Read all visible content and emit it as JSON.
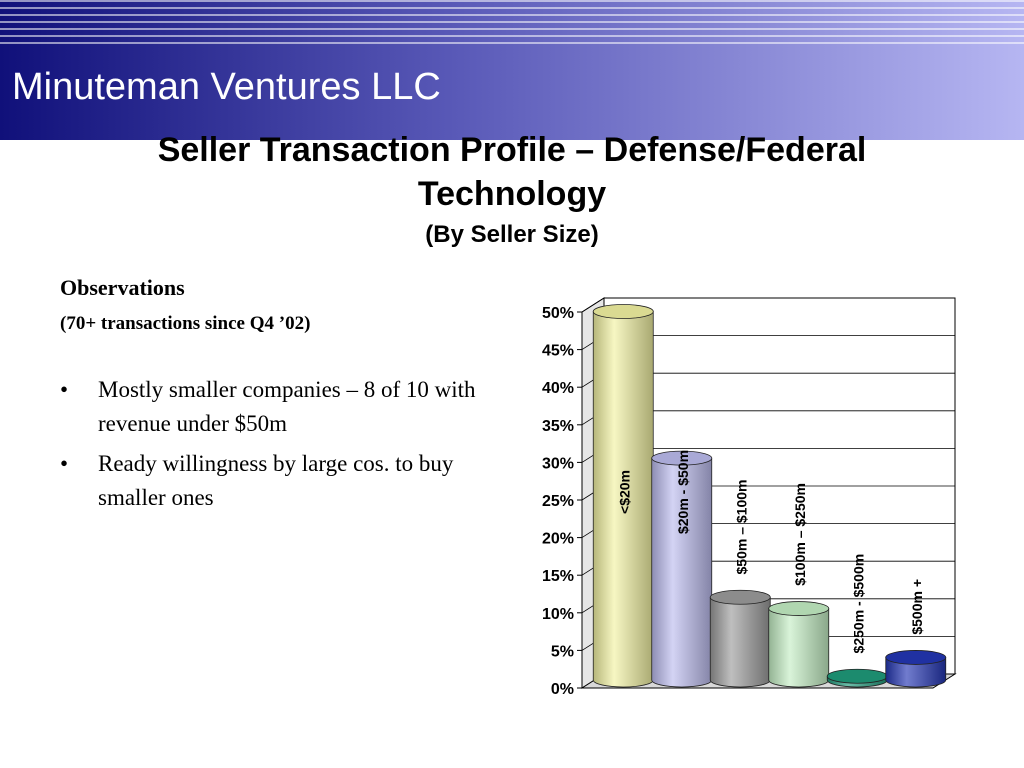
{
  "header": {
    "company": "Minuteman Ventures LLC"
  },
  "title": {
    "line1": "Seller Transaction Profile  – Defense/Federal",
    "line2": "Technology",
    "subtitle": "(By Seller Size)"
  },
  "observations": {
    "heading": "Observations",
    "subheading": "(70+ transactions since Q4 ’02)",
    "bullet_glyph": "•",
    "bullets": [
      "Mostly smaller companies – 8 of 10 with revenue under $50m",
      "Ready willingness by large cos. to buy smaller ones"
    ]
  },
  "chart_data": {
    "type": "bar",
    "title": "",
    "xlabel": "",
    "ylabel": "",
    "ylim": [
      0,
      50
    ],
    "yticks": [
      "0%",
      "5%",
      "10%",
      "15%",
      "20%",
      "25%",
      "30%",
      "35%",
      "40%",
      "45%",
      "50%"
    ],
    "grid": true,
    "categories": [
      "<$20m",
      "$20m - $50m",
      "$50m – $100m",
      "$100m – $250m",
      "$250m - $500m",
      "$500m +"
    ],
    "values": [
      49,
      29.5,
      11,
      9.5,
      0.5,
      3
    ],
    "colors": [
      "#f2f2a2",
      "#bcbcee",
      "#9c9c9c",
      "#c4eec4",
      "#1f9a7a",
      "#2436b4"
    ]
  }
}
